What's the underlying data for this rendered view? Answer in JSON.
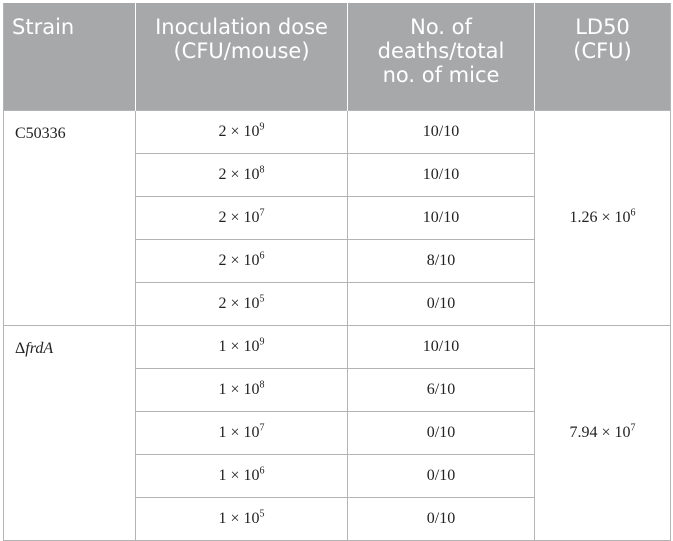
{
  "headers": {
    "strain": "Strain",
    "dose_line1": "Inoculation",
    "dose_line2": "dose",
    "dose_line3": "(CFU/mouse)",
    "deaths_line1": "No. of",
    "deaths_line2": "deaths/total",
    "deaths_line3": "no. of mice",
    "ld50_line1": "LD50",
    "ld50_line2": "(CFU)"
  },
  "groups": [
    {
      "strain_prefix": "",
      "strain_italic": "",
      "strain": "C50336",
      "ld50_mantissa": "1.26 × 10",
      "ld50_exp": "6",
      "rows": [
        {
          "dose_mantissa": "2 × 10",
          "dose_exp": "9",
          "deaths": "10/10"
        },
        {
          "dose_mantissa": "2 × 10",
          "dose_exp": "8",
          "deaths": "10/10"
        },
        {
          "dose_mantissa": "2 × 10",
          "dose_exp": "7",
          "deaths": "10/10"
        },
        {
          "dose_mantissa": "2 × 10",
          "dose_exp": "6",
          "deaths": "8/10"
        },
        {
          "dose_mantissa": "2 × 10",
          "dose_exp": "5",
          "deaths": "0/10"
        }
      ]
    },
    {
      "strain_prefix": "Δ",
      "strain_italic": "frdA",
      "strain": "",
      "ld50_mantissa": "7.94 × 10",
      "ld50_exp": "7",
      "rows": [
        {
          "dose_mantissa": "1 × 10",
          "dose_exp": "9",
          "deaths": "10/10"
        },
        {
          "dose_mantissa": "1 × 10",
          "dose_exp": "8",
          "deaths": "6/10"
        },
        {
          "dose_mantissa": "1 × 10",
          "dose_exp": "7",
          "deaths": "0/10"
        },
        {
          "dose_mantissa": "1 × 10",
          "dose_exp": "6",
          "deaths": "0/10"
        },
        {
          "dose_mantissa": "1 × 10",
          "dose_exp": "5",
          "deaths": "0/10"
        }
      ]
    }
  ]
}
